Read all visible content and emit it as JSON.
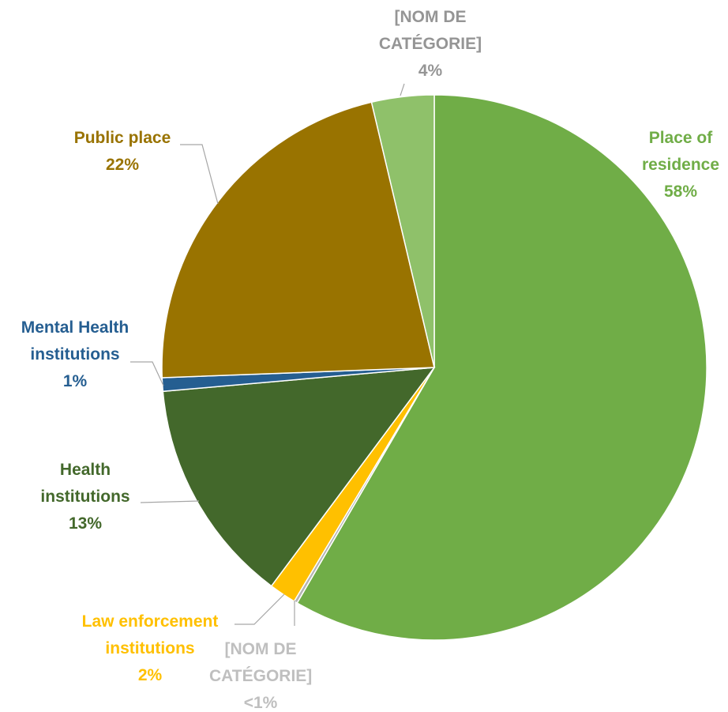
{
  "chart_data": {
    "type": "pie",
    "categories": [
      "Place of residence",
      "[NOM DE CATÉGORIE]",
      "Law enforcement institutions",
      "Health institutions",
      "Mental Health institutions",
      "Public place",
      "[NOM DE CATÉGORIE]"
    ],
    "values": [
      58.4,
      0.2,
      1.6,
      13.4,
      0.8,
      21.9,
      3.7
    ],
    "value_labels": [
      "58%",
      "<1%",
      "2%",
      "13%",
      "1%",
      "22%",
      "4%"
    ],
    "colors": [
      "#70ad47",
      "#b4b4b4",
      "#ffc000",
      "#43682b",
      "#255e91",
      "#997300",
      "#8fc16a"
    ],
    "label_colors": [
      "#70ad47",
      "#bfbfbf",
      "#ffc000",
      "#43682b",
      "#255e91",
      "#997300",
      "#959595"
    ]
  }
}
